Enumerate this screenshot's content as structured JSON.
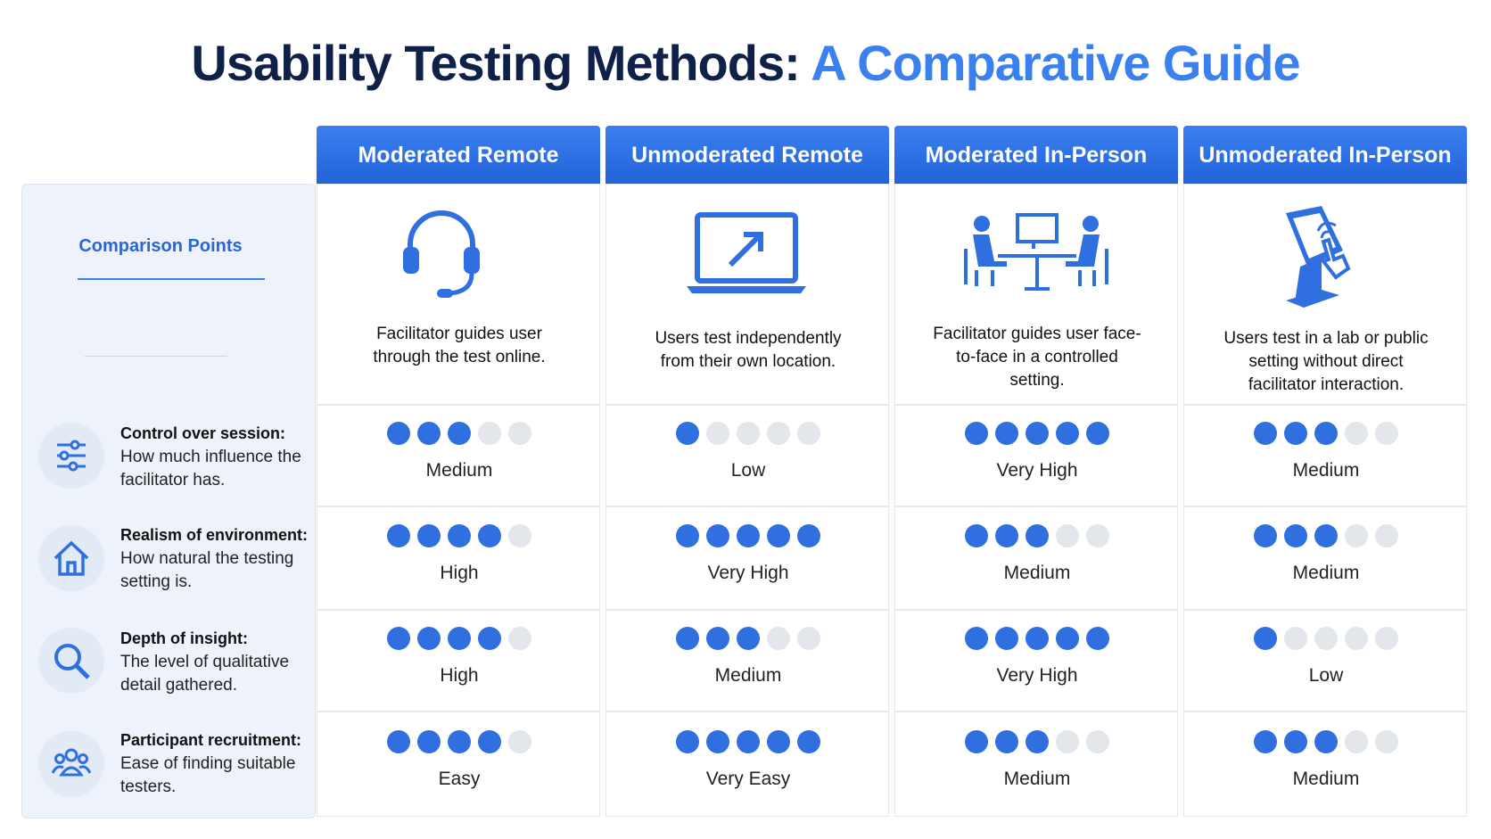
{
  "title": {
    "main": "Usability Testing Methods:",
    "accent": "A Comparative Guide"
  },
  "sidebar_heading": "Comparison Points",
  "scale_max": 5,
  "methods": [
    {
      "name": "Moderated Remote",
      "description": "Facilitator guides user through the test online."
    },
    {
      "name": "Unmoderated Remote",
      "description": "Users test independently from their own location."
    },
    {
      "name": "Moderated In-Person",
      "description": "Facilitator guides user face-to-face in a controlled setting."
    },
    {
      "name": "Unmoderated In-Person",
      "description": "Users test in a lab or public setting without direct facilitator interaction."
    }
  ],
  "criteria": [
    {
      "title": "Control over session:",
      "description": "How much influence the facilitator has."
    },
    {
      "title": "Realism of environment:",
      "description": "How natural the testing setting is."
    },
    {
      "title": "Depth of insight:",
      "description": "The level of qualitative detail gathered."
    },
    {
      "title": "Participant recruitment:",
      "description": "Ease of finding suitable testers."
    }
  ],
  "ratings": [
    [
      {
        "dots": 3,
        "label": "Medium"
      },
      {
        "dots": 1,
        "label": "Low"
      },
      {
        "dots": 5,
        "label": "Very High"
      },
      {
        "dots": 3,
        "label": "Medium"
      }
    ],
    [
      {
        "dots": 4,
        "label": "High"
      },
      {
        "dots": 5,
        "label": "Very High"
      },
      {
        "dots": 3,
        "label": "Medium"
      },
      {
        "dots": 3,
        "label": "Medium"
      }
    ],
    [
      {
        "dots": 4,
        "label": "High"
      },
      {
        "dots": 3,
        "label": "Medium"
      },
      {
        "dots": 5,
        "label": "Very High"
      },
      {
        "dots": 1,
        "label": "Low"
      }
    ],
    [
      {
        "dots": 4,
        "label": "Easy"
      },
      {
        "dots": 5,
        "label": "Very Easy"
      },
      {
        "dots": 3,
        "label": "Medium"
      },
      {
        "dots": 3,
        "label": "Medium"
      }
    ]
  ]
}
